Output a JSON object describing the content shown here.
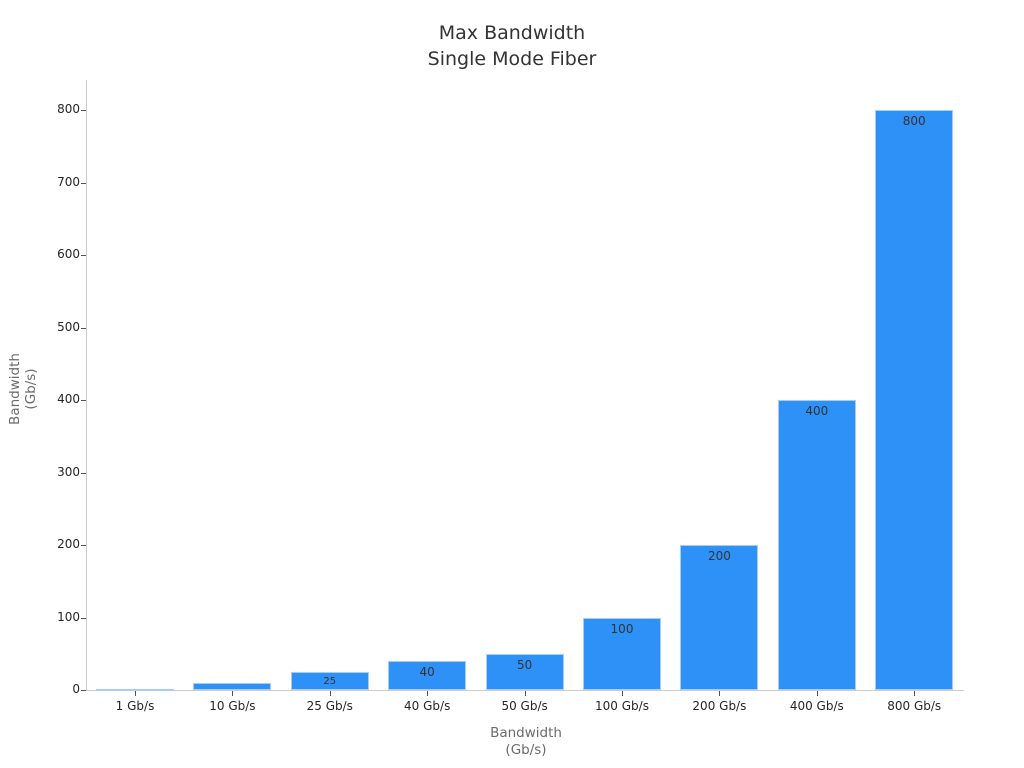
{
  "chart_data": {
    "type": "bar",
    "title": "Max Bandwidth",
    "subtitle": "Single Mode Fiber",
    "xlabel": "Bandwidth\n(Gb/s)",
    "xlabel_lines": [
      "Bandwidth",
      "(Gb/s)"
    ],
    "ylabel": "Bandwidth\n(Gb/s)",
    "ylabel_lines": [
      "Bandwidth",
      "(Gb/s)"
    ],
    "categories": [
      "1 Gb/s",
      "10 Gb/s",
      "25 Gb/s",
      "40 Gb/s",
      "50 Gb/s",
      "100 Gb/s",
      "200 Gb/s",
      "400 Gb/s",
      "800 Gb/s"
    ],
    "values": [
      1,
      10,
      25,
      40,
      50,
      100,
      200,
      400,
      800
    ],
    "data_labels": [
      "",
      "",
      "25",
      "40",
      "50",
      "100",
      "200",
      "400",
      "800"
    ],
    "yticks": [
      0,
      100,
      200,
      300,
      400,
      500,
      600,
      700,
      800
    ],
    "ylim": [
      0,
      840
    ],
    "grid": false,
    "legend": null,
    "bar_color": "#2e91f8"
  }
}
